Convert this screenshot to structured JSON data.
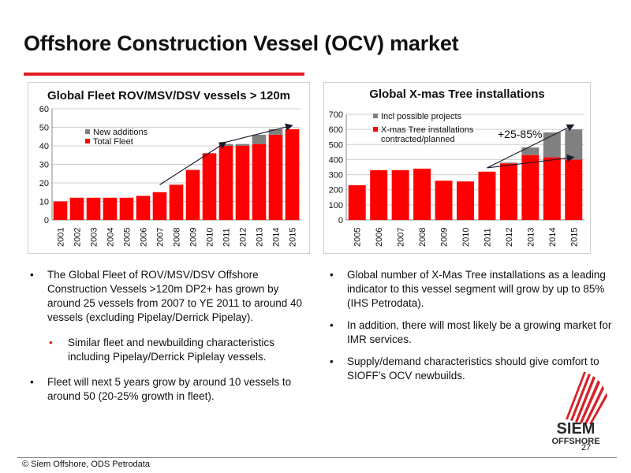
{
  "slide": {
    "title": "Offshore Construction Vessel (OCV) market",
    "page_number": "27",
    "footer": "© Siem Offshore, ODS Petrodata"
  },
  "colors": {
    "accent_red": "#e31b23",
    "bar_red": "#ff0000",
    "bar_grey": "#808080",
    "trend_arrow": "#1a1a2e"
  },
  "logo": {
    "line1": "SIEM",
    "line2": "OFFSHORE"
  },
  "chart_data": [
    {
      "type": "bar",
      "stacked": true,
      "title": "Global Fleet ROV/MSV/DSV vessels > 120m",
      "categories": [
        "2001",
        "2002",
        "2003",
        "2004",
        "2005",
        "2006",
        "2007",
        "2008",
        "2009",
        "2010",
        "2011",
        "2012",
        "2013",
        "2014",
        "2015"
      ],
      "series": [
        {
          "name": "Total Fleet",
          "color": "#ff0000",
          "values": [
            10,
            12,
            12,
            12,
            12,
            13,
            15,
            19,
            27,
            36,
            40,
            40,
            41,
            46,
            49
          ]
        },
        {
          "name": "New additions",
          "color": "#808080",
          "values": [
            0,
            0,
            0,
            0,
            0,
            0,
            0,
            0,
            0,
            0,
            1,
            1,
            5,
            3,
            0
          ]
        }
      ],
      "ylim": [
        0,
        60
      ],
      "yticks": [
        0,
        10,
        20,
        30,
        40,
        50,
        60
      ],
      "grid": true,
      "legend": "top-left, inside plot",
      "legend_order": [
        "New additions",
        "Total Fleet"
      ],
      "annotations": [
        {
          "kind": "arrow",
          "from": {
            "x": "2007",
            "y": 19
          },
          "to": {
            "x": "2011",
            "y": 42
          }
        },
        {
          "kind": "arrow",
          "from": {
            "x": "2011",
            "y": 42
          },
          "to": {
            "x": "2015",
            "y": 51
          }
        }
      ]
    },
    {
      "type": "bar",
      "stacked": true,
      "title": "Global X-mas Tree installations",
      "categories": [
        "2005",
        "2006",
        "2007",
        "2008",
        "2009",
        "2010",
        "2011",
        "2012",
        "2013",
        "2014",
        "2015"
      ],
      "series": [
        {
          "name": "X-mas Tree installations contracted/planned",
          "color": "#ff0000",
          "values": [
            230,
            330,
            330,
            340,
            260,
            255,
            320,
            375,
            430,
            415,
            400
          ]
        },
        {
          "name": "Incl possible projects",
          "color": "#808080",
          "values": [
            0,
            0,
            0,
            0,
            0,
            0,
            0,
            5,
            50,
            165,
            200
          ]
        }
      ],
      "ylim": [
        0,
        700
      ],
      "yticks": [
        0,
        100,
        200,
        300,
        400,
        500,
        600,
        700
      ],
      "grid": true,
      "legend": "top-left, inside plot",
      "legend_order": [
        "Incl possible projects",
        "X-mas Tree installations contracted/planned"
      ],
      "annotations": [
        {
          "kind": "text",
          "text": "+25-85%"
        },
        {
          "kind": "arrow",
          "from": {
            "x": "2011",
            "y": 345
          },
          "to": {
            "x": "2015",
            "y": 415
          }
        },
        {
          "kind": "arrow",
          "from": {
            "x": "2011",
            "y": 345
          },
          "to": {
            "x": "2015",
            "y": 630
          }
        }
      ]
    }
  ],
  "bullets_left": [
    {
      "text": "The Global Fleet of ROV/MSV/DSV Offshore Construction Vessels >120m DP2+ has grown by around 25 vessels from 2007 to YE 2011 to around 40 vessels (excluding Pipelay/Derrick Pipelay).",
      "sub": false
    },
    {
      "text": "Similar fleet and newbuilding characteristics including Pipelay/Derrick Piplelay vessels.",
      "sub": true
    },
    {
      "text": "Fleet will next 5 years grow by around 10 vessels to around 50 (20-25% growth in fleet).",
      "sub": false
    }
  ],
  "bullets_right": [
    {
      "text": "Global number of X-Mas Tree installations as a leading indicator to this vessel segment will grow by up to 85% (IHS Petrodata).",
      "sub": false
    },
    {
      "text": "In addition, there will most likely be a growing market for IMR services.",
      "sub": false
    },
    {
      "text": "Supply/demand characteristics should give comfort to SIOFF’s OCV newbuilds.",
      "sub": false
    }
  ],
  "bullet_symbol": "•"
}
